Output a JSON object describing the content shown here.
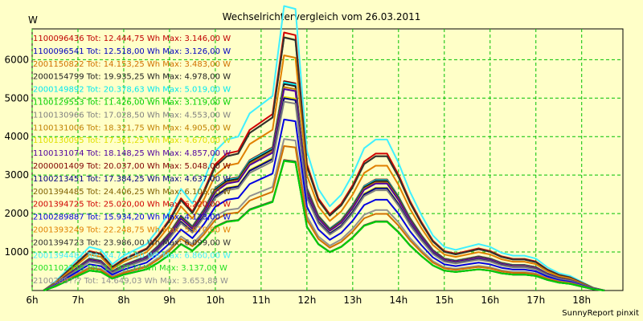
{
  "chart_data": {
    "type": "line",
    "title": "Wechselrichtervergleich vom 26.03.2011",
    "ylabel": "W",
    "xlabel": "",
    "footer": "SunnyReport pinxit",
    "grid": true,
    "ylim": [
      0,
      6800
    ],
    "xlim": [
      6,
      18.9
    ],
    "yticks": [
      1000,
      2000,
      3000,
      4000,
      5000,
      6000
    ],
    "xticks": [
      6,
      7,
      8,
      9,
      10,
      11,
      12,
      13,
      14,
      15,
      16,
      17,
      18
    ],
    "xtick_labels": [
      "6h",
      "7h",
      "8h",
      "9h",
      "10h",
      "11h",
      "12h",
      "13h",
      "14h",
      "15h",
      "16h",
      "17h",
      "18h"
    ],
    "colors": {
      "background": "#ffffc8",
      "grid": "#00c000",
      "frame": "#000000"
    },
    "x": [
      6.25,
      6.5,
      6.75,
      7.0,
      7.25,
      7.5,
      7.75,
      8.0,
      8.25,
      8.5,
      8.75,
      9.0,
      9.25,
      9.5,
      9.75,
      10.0,
      10.25,
      10.5,
      10.75,
      11.0,
      11.25,
      11.5,
      11.75,
      12.0,
      12.25,
      12.5,
      12.75,
      13.0,
      13.25,
      13.5,
      13.75,
      14.0,
      14.25,
      14.5,
      14.75,
      15.0,
      15.25,
      15.5,
      15.75,
      16.0,
      16.25,
      16.5,
      16.75,
      17.0,
      17.25,
      17.5,
      17.75,
      18.0,
      18.25,
      18.5
    ],
    "legend_position": "top-left",
    "series": [
      {
        "name": "1100096436",
        "color": "#c00000",
        "tot": "Tot: 12.444,75 Wh",
        "max": "Max: 3.146,00 W",
        "peak": 3146
      },
      {
        "name": "1100096541",
        "color": "#0000c0",
        "tot": "Tot: 12.518,00 Wh",
        "max": "Max: 3.126,00 W",
        "peak": 3126
      },
      {
        "name": "2001150822",
        "color": "#d07000",
        "tot": "Tot: 14.153,25 Wh",
        "max": "Max: 3.483,00 W",
        "peak": 3483
      },
      {
        "name": "2000154799",
        "color": "#202020",
        "tot": "Tot: 19.935,25 Wh",
        "max": "Max: 4.978,00 W",
        "peak": 4978
      },
      {
        "name": "2000149892",
        "color": "#00e8f0",
        "tot": "Tot: 20.378,63 Wh",
        "max": "Max: 5.019,00 W",
        "peak": 5019
      },
      {
        "name": "1100129553",
        "color": "#00d000",
        "tot": "Tot: 11.426,00 Wh",
        "max": "Max: 3.119,00 W",
        "peak": 3119
      },
      {
        "name": "1100130966",
        "color": "#808080",
        "tot": "Tot: 17.028,50 Wh",
        "max": "Max: 4.553,00 W",
        "peak": 4553
      },
      {
        "name": "1100131006",
        "color": "#c08000",
        "tot": "Tot: 18.321,75 Wh",
        "max": "Max: 4.905,00 W",
        "peak": 4905
      },
      {
        "name": "1100130095",
        "color": "#e0e000",
        "tot": "Tot: 17.361,25 Wh",
        "max": "Max: 4.670,00 W",
        "peak": 4670
      },
      {
        "name": "1100131074",
        "color": "#5000a0",
        "tot": "Tot: 18.148,25 Wh",
        "max": "Max: 4.857,00 W",
        "peak": 4857
      },
      {
        "name": "2000001409",
        "color": "#800000",
        "tot": "Tot: 20.037,00 Wh",
        "max": "Max: 5.048,00 W",
        "peak": 5048
      },
      {
        "name": "1100213451",
        "color": "#000080",
        "tot": "Tot: 17.384,25 Wh",
        "max": "Max: 4.637,00 W",
        "peak": 4637
      },
      {
        "name": "2001394485",
        "color": "#806000",
        "tot": "Tot: 24.406,25 Wh",
        "max": "Max: 6.106,00 W",
        "peak": 6106
      },
      {
        "name": "2001394725",
        "color": "#d00000",
        "tot": "Tot: 25.020,00 Wh",
        "max": "Max: 6.220,00 W",
        "peak": 6220
      },
      {
        "name": "2100289887",
        "color": "#0000e0",
        "tot": "Tot: 15.934,20 Wh",
        "max": "Max: 4.123,00 W",
        "peak": 4123
      },
      {
        "name": "2001393249",
        "color": "#e08000",
        "tot": "Tot: 22.248,75 Wh",
        "max": "Max: 5.670,00 W",
        "peak": 5670
      },
      {
        "name": "2001394723",
        "color": "#303030",
        "tot": "Tot: 23.986,00 Wh",
        "max": "Max: 6.099,00 W",
        "peak": 6099
      },
      {
        "name": "2001394487",
        "color": "#40f0ff",
        "tot": "Tot: 24.772,50 Wh",
        "max": "Max: 6.860,00 W",
        "peak": 6860
      },
      {
        "name": "2001102358",
        "color": "#20e020",
        "tot": "Tot: 11.9??,?? Wh",
        "max": "Max: 3.137,00 W",
        "peak": 3137
      },
      {
        "name": "2100289???",
        "color": "#909090",
        "tot": "Tot: 14.649,03 Wh",
        "max": "Max: 3.653,88 W",
        "peak": 3653
      }
    ],
    "profile": [
      0.0,
      0.03,
      0.07,
      0.11,
      0.15,
      0.14,
      0.09,
      0.12,
      0.14,
      0.16,
      0.21,
      0.27,
      0.35,
      0.3,
      0.38,
      0.48,
      0.52,
      0.53,
      0.61,
      0.64,
      0.67,
      0.98,
      0.97,
      0.48,
      0.35,
      0.29,
      0.33,
      0.4,
      0.49,
      0.52,
      0.52,
      0.44,
      0.34,
      0.26,
      0.19,
      0.15,
      0.14,
      0.15,
      0.16,
      0.15,
      0.13,
      0.12,
      0.12,
      0.11,
      0.08,
      0.06,
      0.05,
      0.03,
      0.01,
      0.0
    ]
  }
}
